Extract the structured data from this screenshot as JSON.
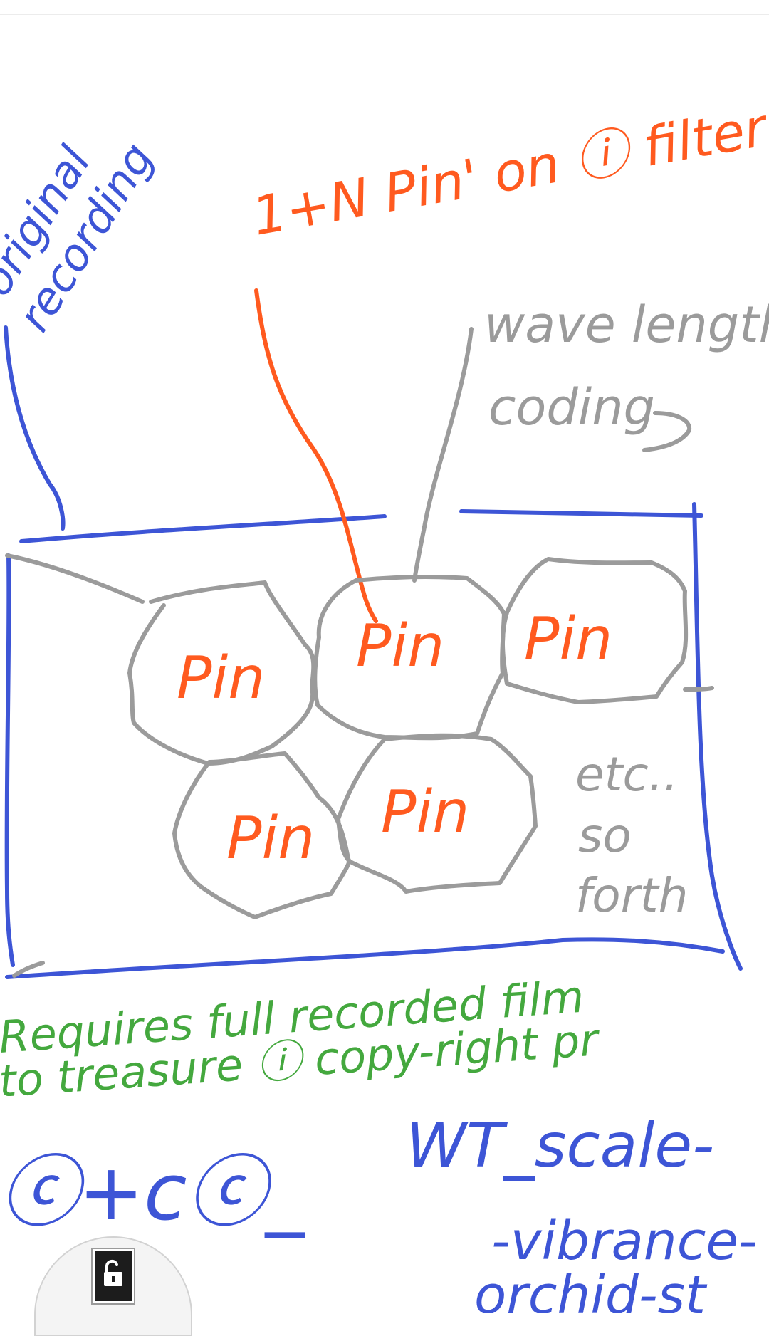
{
  "colors": {
    "blue": "#3d55d6",
    "orange": "#ff5a1f",
    "gray": "#9b9b9b",
    "green": "#44a83e",
    "lock_bg": "#1c1c1c"
  },
  "notes": {
    "original_recording": [
      "original",
      "recording"
    ],
    "pin_header": "1+N Pin' on ⓘ filter",
    "wavelength": [
      "wave length",
      "coding"
    ],
    "pins": [
      "Pin",
      "Pin",
      "Pin",
      "Pin",
      "Pin"
    ],
    "etc": [
      "etc..",
      "so",
      "forth"
    ],
    "requires": [
      "Requires full recorded film",
      "to treasure ⓘ copy-right pr"
    ],
    "bottom_left": "ⓒ+cⓒ_",
    "bottom_right": [
      "WT_scale-",
      "-vibrance-",
      "orchid-st"
    ]
  },
  "toolbar": {
    "lock_icon": "unlock-icon"
  }
}
